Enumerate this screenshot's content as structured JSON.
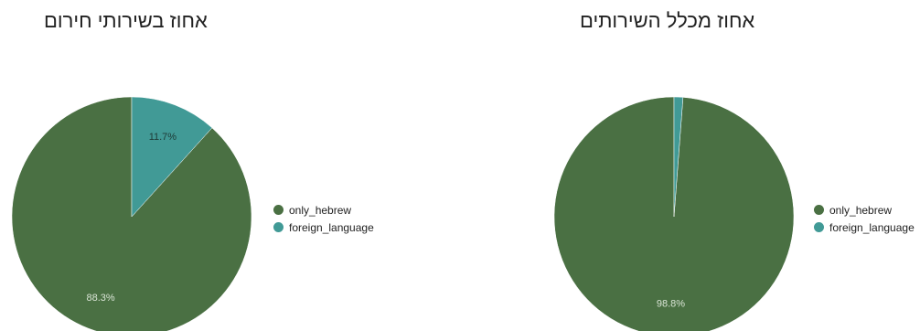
{
  "chart_data": [
    {
      "type": "pie",
      "title": "אחוז בשירותי חירום",
      "categories": [
        "only_hebrew",
        "foreign_language"
      ],
      "values": [
        88.3,
        11.7
      ],
      "labels": [
        "88.3%",
        "11.7%"
      ],
      "colors": [
        "#4a7043",
        "#419a96"
      ],
      "legend_position": "right"
    },
    {
      "type": "pie",
      "title": "אחוז מכלל השירותים",
      "categories": [
        "only_hebrew",
        "foreign_language"
      ],
      "values": [
        98.8,
        1.2
      ],
      "labels": [
        "98.8%",
        ""
      ],
      "colors": [
        "#4a7043",
        "#419a96"
      ],
      "legend_position": "right"
    }
  ]
}
